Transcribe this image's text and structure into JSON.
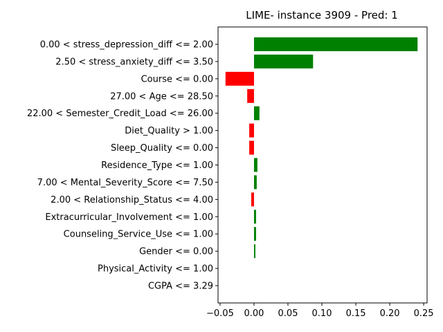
{
  "chart_data": {
    "type": "bar",
    "orientation": "horizontal",
    "title": "LIME- instance 3909 - Pred: 1",
    "xlabel": "",
    "ylabel": "",
    "xlim": [
      -0.053,
      0.255
    ],
    "xticks": [
      -0.05,
      0.0,
      0.05,
      0.1,
      0.15,
      0.2,
      0.25
    ],
    "xtick_labels": [
      "−0.05",
      "0.00",
      "0.05",
      "0.10",
      "0.15",
      "0.20",
      "0.25"
    ],
    "grid": false,
    "positive_color": "#008000",
    "negative_color": "#ff0000",
    "categories": [
      "0.00 < stress_depression_diff <= 2.00",
      "2.50 < stress_anxiety_diff <= 3.50",
      "Course <= 0.00",
      "27.00 < Age <= 28.50",
      "22.00 < Semester_Credit_Load <= 26.00",
      "Diet_Quality > 1.00",
      "Sleep_Quality <= 0.00",
      "Residence_Type <= 1.00",
      "7.00 < Mental_Severity_Score <= 7.50",
      "2.00 < Relationship_Status <= 4.00",
      "Extracurricular_Involvement <= 1.00",
      "Counseling_Service_Use <= 1.00",
      "Gender <= 0.00",
      "Physical_Activity <= 1.00",
      "CGPA <= 3.29"
    ],
    "values": [
      0.241,
      0.087,
      -0.042,
      -0.01,
      0.008,
      -0.007,
      -0.007,
      0.005,
      0.004,
      -0.004,
      0.003,
      0.003,
      0.002,
      0.0,
      0.0
    ]
  }
}
